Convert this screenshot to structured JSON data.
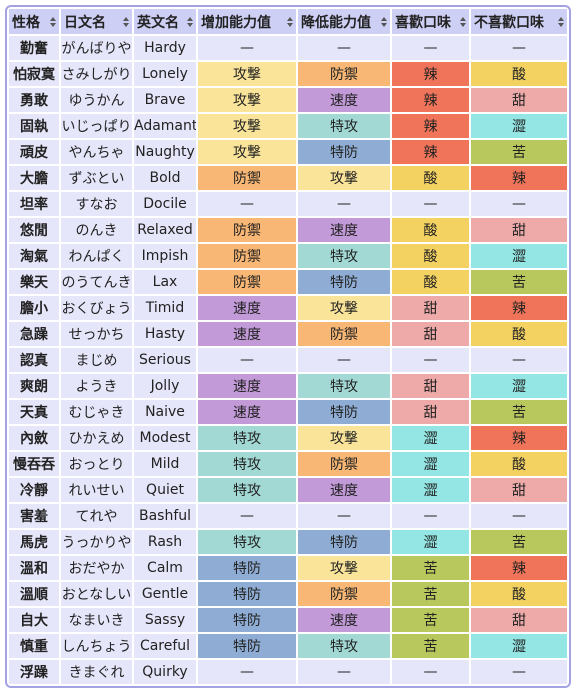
{
  "table": {
    "header": [
      "性格",
      "日文名",
      "英文名",
      "增加能力值",
      "降低能力值",
      "喜歡口味",
      "不喜歡口味"
    ],
    "rows": [
      [
        "勤奮",
        "がんばりや",
        "Hardy",
        "—",
        "—",
        "—",
        "—"
      ],
      [
        "怕寂寞",
        "さみしがり",
        "Lonely",
        "攻撃",
        "防禦",
        "辣",
        "酸"
      ],
      [
        "勇敢",
        "ゆうかん",
        "Brave",
        "攻撃",
        "速度",
        "辣",
        "甜"
      ],
      [
        "固執",
        "いじっぱり",
        "Adamant",
        "攻撃",
        "特攻",
        "辣",
        "澀"
      ],
      [
        "頑皮",
        "やんちゃ",
        "Naughty",
        "攻撃",
        "特防",
        "辣",
        "苦"
      ],
      [
        "大膽",
        "ずぶとい",
        "Bold",
        "防禦",
        "攻撃",
        "酸",
        "辣"
      ],
      [
        "坦率",
        "すなお",
        "Docile",
        "—",
        "—",
        "—",
        "—"
      ],
      [
        "悠閒",
        "のんき",
        "Relaxed",
        "防禦",
        "速度",
        "酸",
        "甜"
      ],
      [
        "淘氣",
        "わんぱく",
        "Impish",
        "防禦",
        "特攻",
        "酸",
        "澀"
      ],
      [
        "樂天",
        "のうてんき",
        "Lax",
        "防禦",
        "特防",
        "酸",
        "苦"
      ],
      [
        "膽小",
        "おくびょう",
        "Timid",
        "速度",
        "攻撃",
        "甜",
        "辣"
      ],
      [
        "急躁",
        "せっかち",
        "Hasty",
        "速度",
        "防禦",
        "甜",
        "酸"
      ],
      [
        "認真",
        "まじめ",
        "Serious",
        "—",
        "—",
        "—",
        "—"
      ],
      [
        "爽朗",
        "ようき",
        "Jolly",
        "速度",
        "特攻",
        "甜",
        "澀"
      ],
      [
        "天真",
        "むじゃき",
        "Naive",
        "速度",
        "特防",
        "甜",
        "苦"
      ],
      [
        "內斂",
        "ひかえめ",
        "Modest",
        "特攻",
        "攻撃",
        "澀",
        "辣"
      ],
      [
        "慢吞吞",
        "おっとり",
        "Mild",
        "特攻",
        "防禦",
        "澀",
        "酸"
      ],
      [
        "冷靜",
        "れいせい",
        "Quiet",
        "特攻",
        "速度",
        "澀",
        "甜"
      ],
      [
        "害羞",
        "てれや",
        "Bashful",
        "—",
        "—",
        "—",
        "—"
      ],
      [
        "馬虎",
        "うっかりや",
        "Rash",
        "特攻",
        "特防",
        "澀",
        "苦"
      ],
      [
        "溫和",
        "おだやか",
        "Calm",
        "特防",
        "攻撃",
        "苦",
        "辣"
      ],
      [
        "溫順",
        "おとなしい",
        "Gentle",
        "特防",
        "防禦",
        "苦",
        "酸"
      ],
      [
        "自大",
        "なまいき",
        "Sassy",
        "特防",
        "速度",
        "苦",
        "甜"
      ],
      [
        "慎重",
        "しんちょう",
        "Careful",
        "特防",
        "特攻",
        "苦",
        "澀"
      ],
      [
        "浮躁",
        "きまぐれ",
        "Quirky",
        "—",
        "—",
        "—",
        "—"
      ]
    ],
    "cell_colors": {
      "攻撃": "#f9e49a",
      "防禦": "#f8b774",
      "速度": "#c39ad8",
      "特攻": "#a2d9d5",
      "特防": "#8fadd4",
      "辣": "#ef7459",
      "酸": "#f4d262",
      "甜": "#eeaaa8",
      "澀": "#93e6e3",
      "苦": "#b8c85c"
    }
  }
}
